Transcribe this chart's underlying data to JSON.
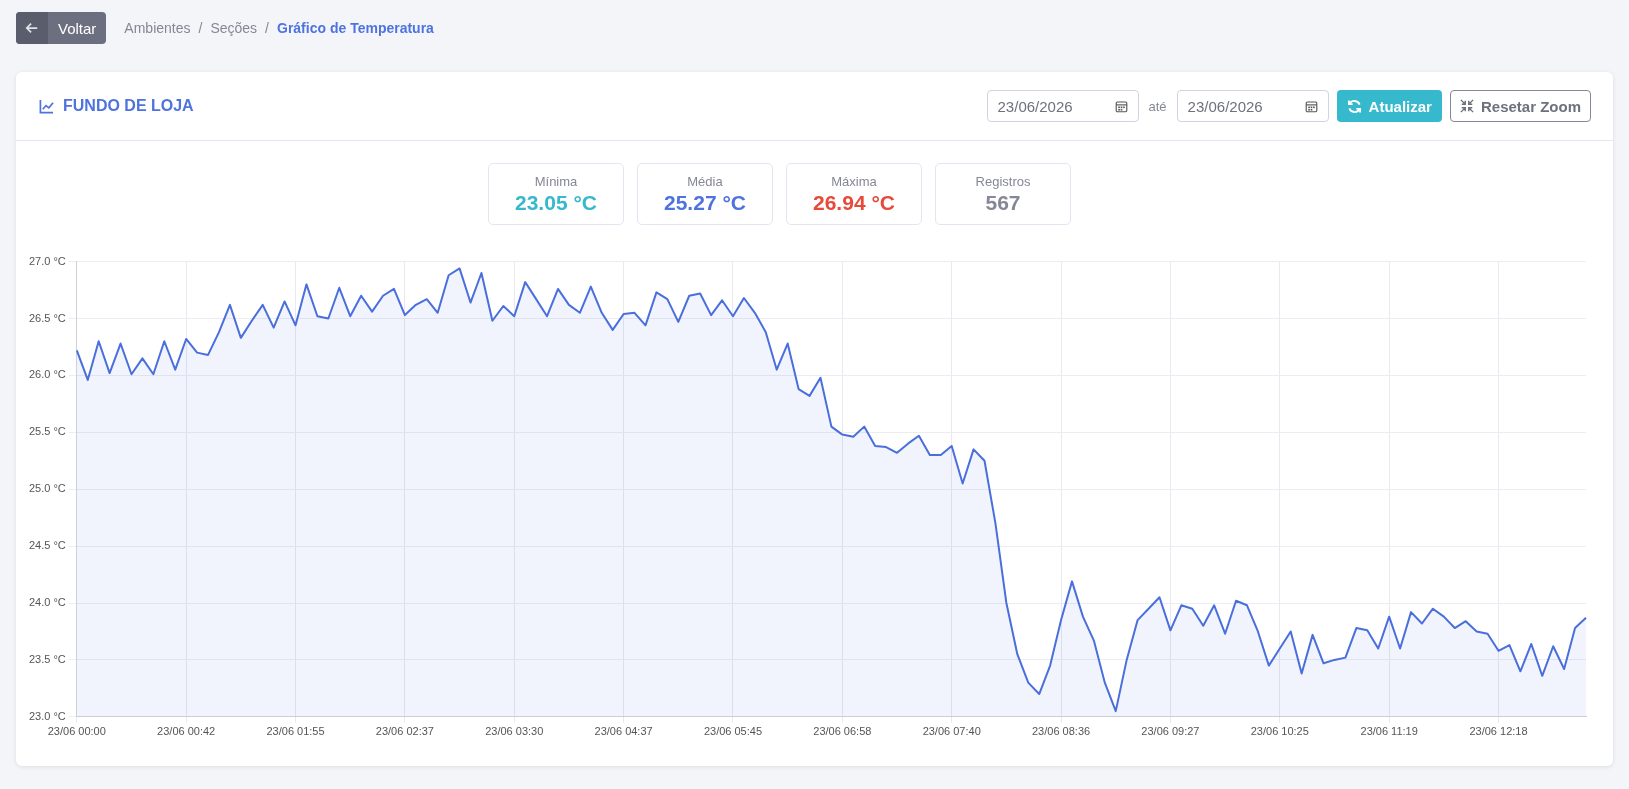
{
  "chart_data": {
    "type": "area",
    "title": "FUNDO DE LOJA",
    "annotations": [
      "Voltar",
      "Ambientes",
      "/",
      "Seções",
      "/",
      "Gráfico de Temperatura",
      "23/06/2026",
      "até",
      "23/06/2026",
      "Atualizar",
      "Resetar Zoom",
      "Mínima",
      "23.05 °C",
      "Média",
      "25.27 °C",
      "Máxima",
      "26.94 °C",
      "Registros",
      "567"
    ],
    "categories": [
      "23/06 00:00",
      null,
      null,
      null,
      null,
      null,
      null,
      null,
      null,
      null,
      "23/06 00:42",
      null,
      null,
      null,
      null,
      null,
      null,
      null,
      null,
      null,
      "23/06 01:55",
      null,
      null,
      null,
      null,
      null,
      null,
      null,
      null,
      null,
      "23/06 02:37",
      null,
      null,
      null,
      null,
      null,
      null,
      null,
      null,
      null,
      "23/06 03:30",
      null,
      null,
      null,
      null,
      null,
      null,
      null,
      null,
      null,
      "23/06 04:37",
      null,
      null,
      null,
      null,
      null,
      null,
      null,
      null,
      null,
      "23/06 05:45",
      null,
      null,
      null,
      null,
      null,
      null,
      null,
      null,
      null,
      "23/06 06:58",
      null,
      null,
      null,
      null,
      null,
      null,
      null,
      null,
      null,
      "23/06 07:40",
      null,
      null,
      null,
      null,
      null,
      null,
      null,
      null,
      null,
      "23/06 08:36",
      null,
      null,
      null,
      null,
      null,
      null,
      null,
      null,
      null,
      "23/06 09:27",
      null,
      null,
      null,
      null,
      null,
      null,
      null,
      null,
      null,
      "23/06 10:25",
      null,
      null,
      null,
      null,
      null,
      null,
      null,
      null,
      null,
      "23/06 11:19",
      null,
      null,
      null,
      null,
      null,
      null,
      null,
      null,
      null,
      "23/06 12:18",
      null,
      null,
      null,
      null,
      null,
      null,
      null,
      null
    ],
    "series": [
      {
        "color": "#4a6fdc",
        "values": [
          26.22,
          25.96,
          26.3,
          26.02,
          26.28,
          26.01,
          26.15,
          26.01,
          26.3,
          26.05,
          26.32,
          26.2,
          26.18,
          26.38,
          26.62,
          26.33,
          26.48,
          26.62,
          26.42,
          26.65,
          26.44,
          26.8,
          26.52,
          26.5,
          26.77,
          26.52,
          26.7,
          26.56,
          26.7,
          26.76,
          26.53,
          26.62,
          26.67,
          26.55,
          26.88,
          26.94,
          26.64,
          26.9,
          26.48,
          26.61,
          26.52,
          26.82,
          26.67,
          26.52,
          26.76,
          26.62,
          26.55,
          26.78,
          26.55,
          26.4,
          26.54,
          26.55,
          26.44,
          26.73,
          26.67,
          26.47,
          26.7,
          26.72,
          26.53,
          26.66,
          26.52,
          26.68,
          26.55,
          26.38,
          26.05,
          26.28,
          25.88,
          25.82,
          25.98,
          25.55,
          25.48,
          25.46,
          25.55,
          25.38,
          25.37,
          25.32,
          25.4,
          25.47,
          25.3,
          25.3,
          25.38,
          25.05,
          25.35,
          25.25,
          24.7,
          24.0,
          23.55,
          23.3,
          23.2,
          23.45,
          23.85,
          24.19,
          23.88,
          23.67,
          23.3,
          23.05,
          23.5,
          23.85,
          23.95,
          24.05,
          23.76,
          23.98,
          23.95,
          23.8,
          23.98,
          23.73,
          24.02,
          23.98,
          23.75,
          23.45,
          23.6,
          23.75,
          23.38,
          23.72,
          23.47,
          23.5,
          23.52,
          23.78,
          23.76,
          23.6,
          23.88,
          23.6,
          23.92,
          23.82,
          23.95,
          23.88,
          23.78,
          23.84,
          23.75,
          23.73,
          23.58,
          23.63,
          23.4,
          23.64,
          23.36,
          23.62,
          23.42,
          23.78,
          23.87
        ]
      }
    ],
    "ylim": [
      23,
      27
    ],
    "yticks": [
      {
        "value": 23,
        "label": "23.0 °C"
      },
      {
        "value": 23.5,
        "label": "23.5 °C"
      },
      {
        "value": 24,
        "label": "24.0 °C"
      },
      {
        "value": 24.5,
        "label": "24.5 °C"
      },
      {
        "value": 25,
        "label": "25.0 °C"
      },
      {
        "value": 25.5,
        "label": "25.5 °C"
      },
      {
        "value": 26,
        "label": "26.0 °C"
      },
      {
        "value": 26.5,
        "label": "26.5 °C"
      },
      {
        "value": 27,
        "label": "27.0 °C"
      }
    ],
    "grid": true,
    "marker": "none",
    "line_style": "solid"
  }
}
